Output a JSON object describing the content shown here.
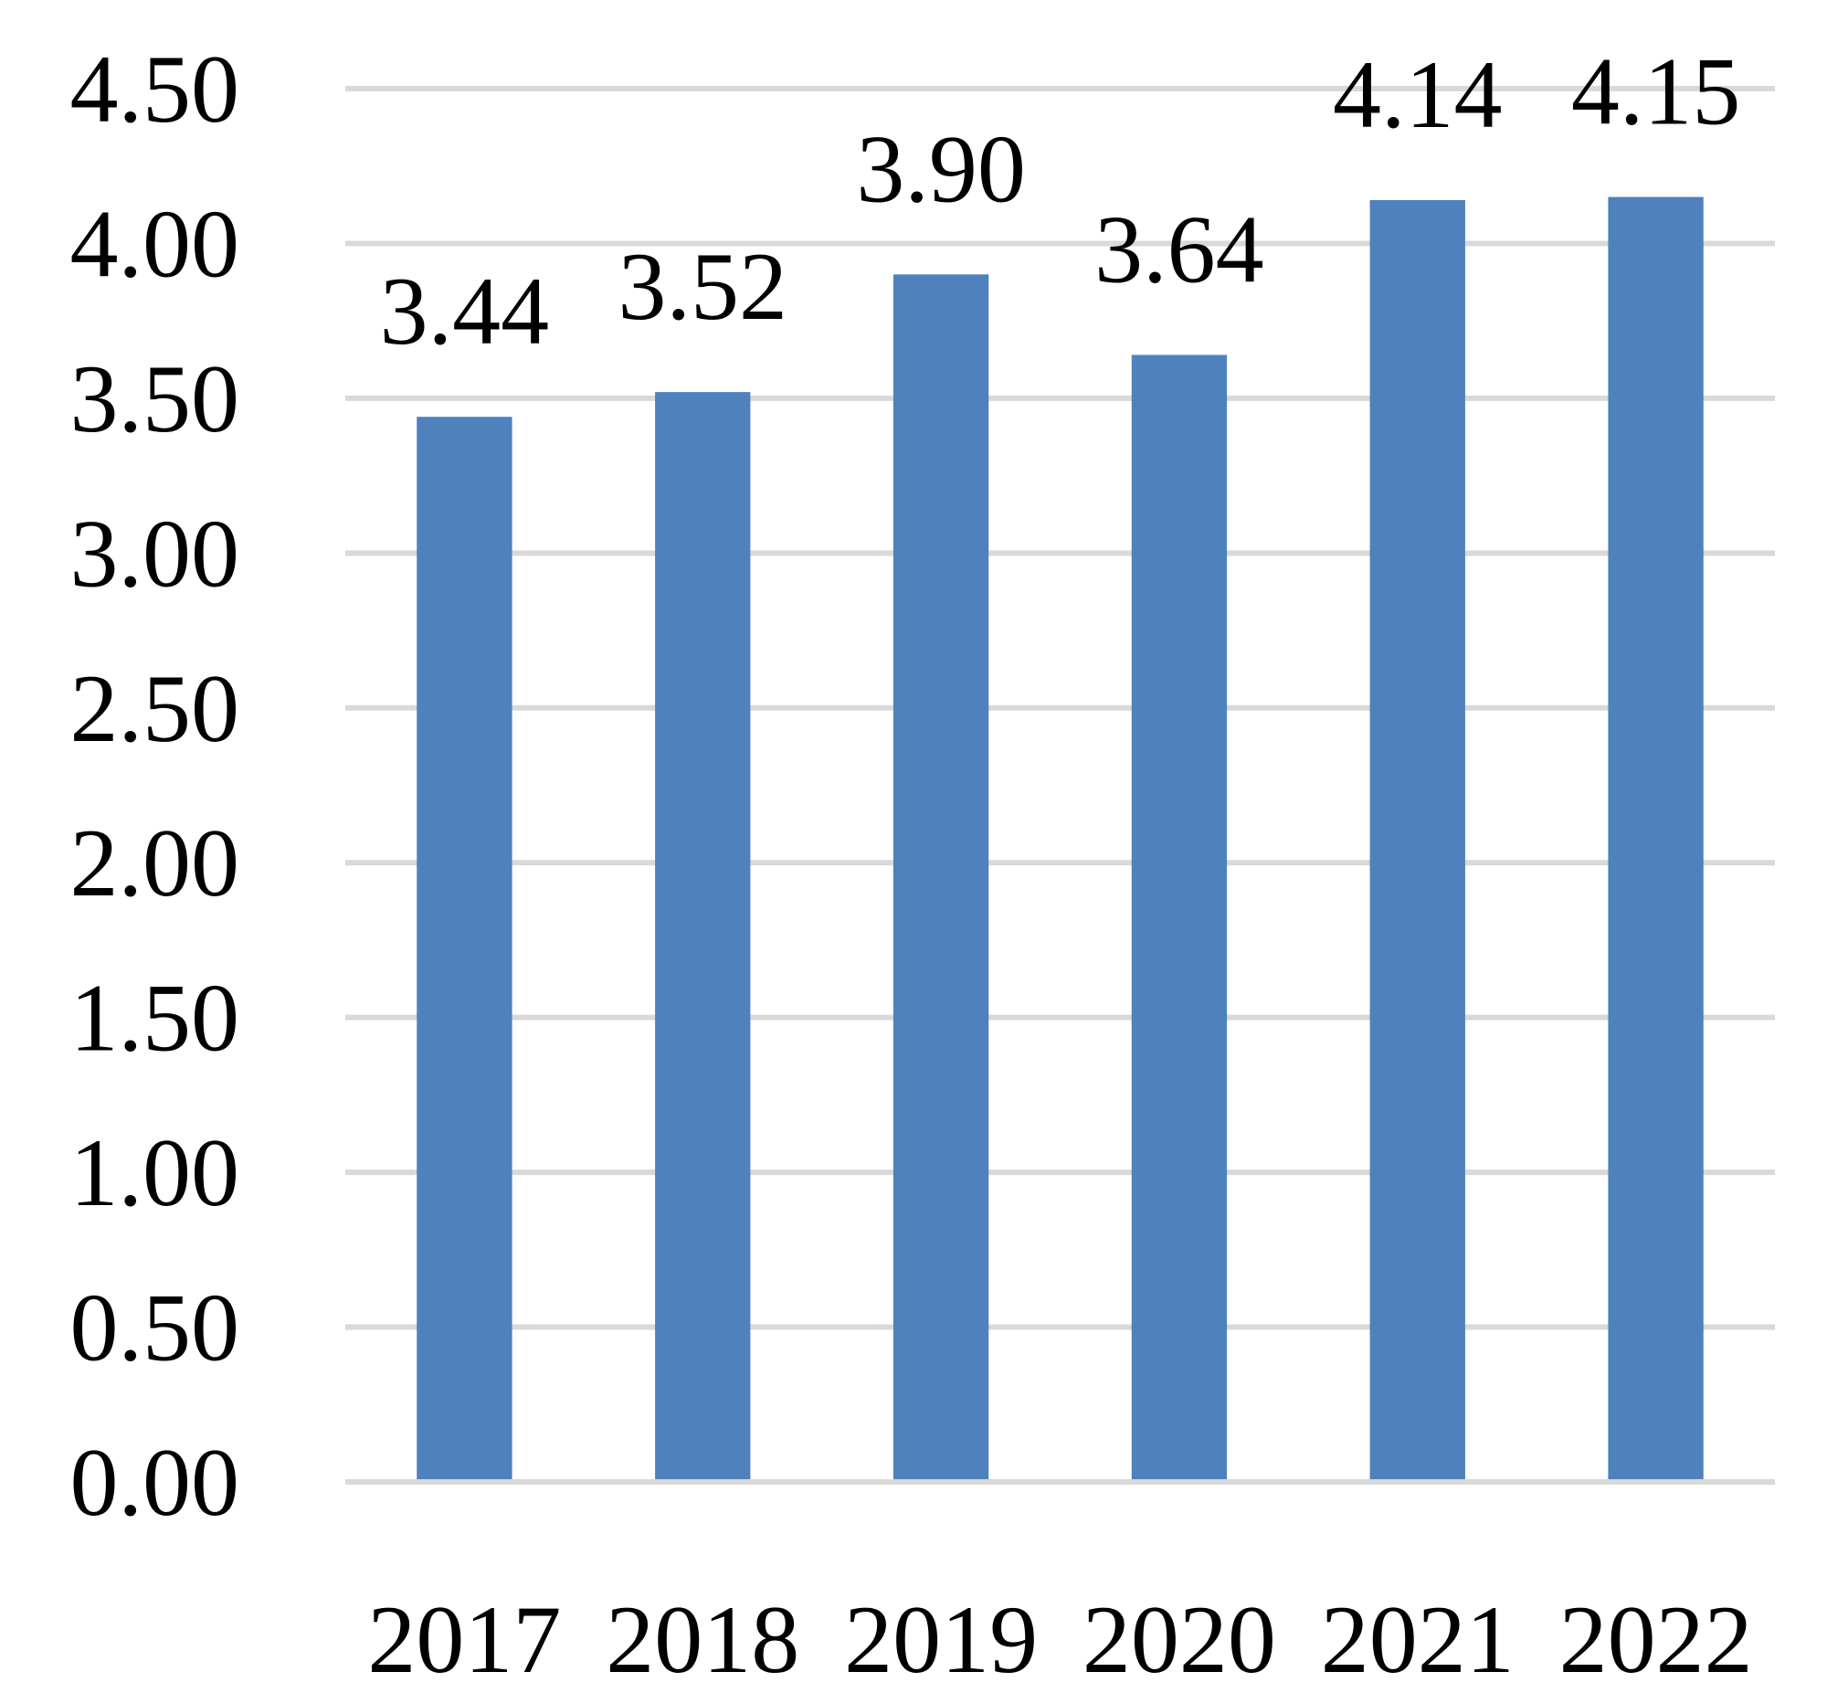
{
  "chart_data": {
    "type": "bar",
    "title": "",
    "xlabel": "",
    "ylabel": "",
    "categories": [
      "2017",
      "2018",
      "2019",
      "2020",
      "2021",
      "2022"
    ],
    "values": [
      3.44,
      3.52,
      3.9,
      3.64,
      4.14,
      4.15
    ],
    "data_labels": [
      "3.44",
      "3.52",
      "3.90",
      "3.64",
      "4.14",
      "4.15"
    ],
    "ylim": [
      0,
      4.5
    ],
    "yticks": [
      "0.00",
      "0.50",
      "1.00",
      "1.50",
      "2.00",
      "2.50",
      "3.00",
      "3.50",
      "4.00",
      "4.50"
    ],
    "grid": true,
    "legend": "none",
    "bar_color": "#4f81bd",
    "grid_color": "#d9d9d9"
  }
}
